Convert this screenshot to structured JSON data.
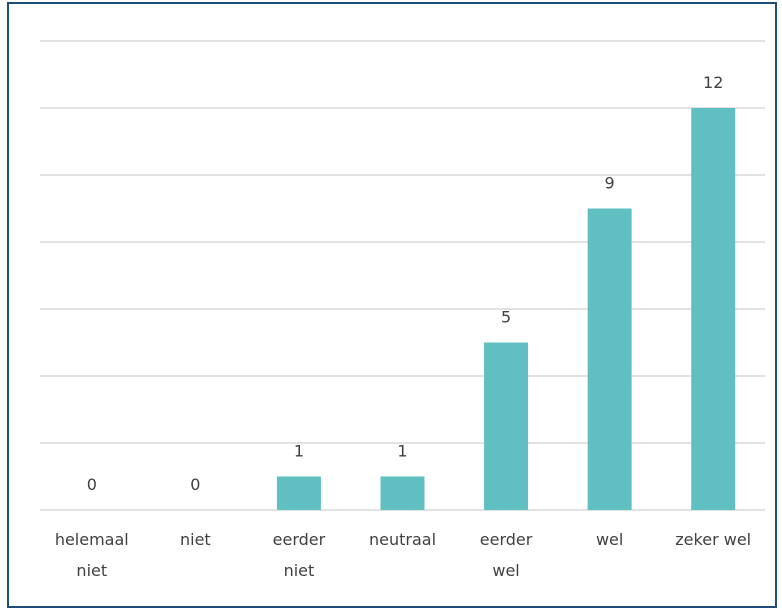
{
  "chart_data": {
    "type": "bar",
    "categories": [
      "helemaal\nniet",
      "niet",
      "eerder\nniet",
      "neutraal",
      "eerder\nwel",
      "wel",
      "zeker wel"
    ],
    "values": [
      0,
      0,
      1,
      1,
      5,
      9,
      12
    ],
    "color": "#5fbfc1",
    "ylim": [
      0,
      14
    ],
    "yticks": [
      0,
      2,
      4,
      6,
      8,
      10,
      12,
      14
    ],
    "grid": true
  }
}
